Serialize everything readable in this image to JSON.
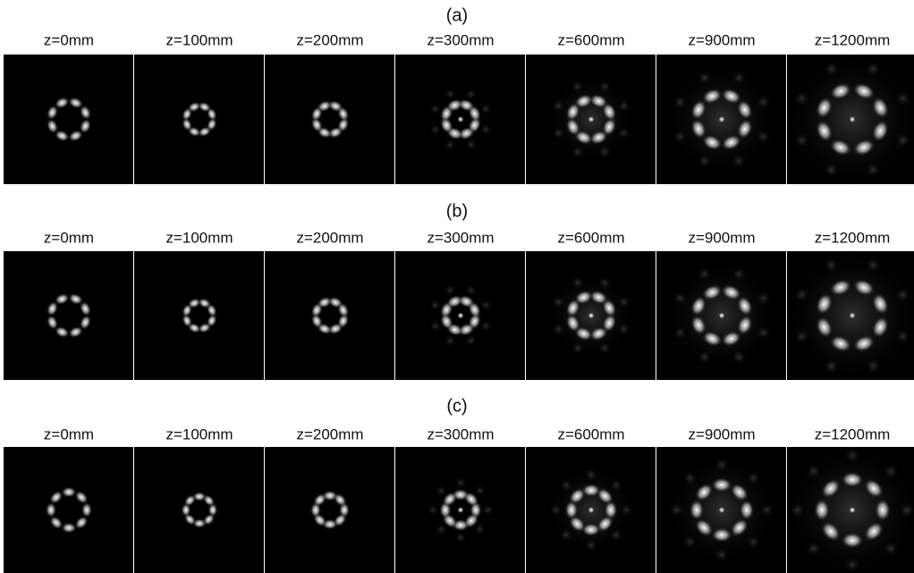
{
  "rows": [
    {
      "label": "(a)",
      "panels": [
        "z=0mm",
        "z=100mm",
        "z=200mm",
        "z=300mm",
        "z=600mm",
        "z=900mm",
        "z=1200mm"
      ]
    },
    {
      "label": "(b)",
      "panels": [
        "z=0mm",
        "z=100mm",
        "z=200mm",
        "z=300mm",
        "z=600mm",
        "z=900mm",
        "z=1200mm"
      ]
    },
    {
      "label": "(c)",
      "panels": [
        "z=0mm",
        "z=100mm",
        "z=200mm",
        "z=300mm",
        "z=600mm",
        "z=900mm",
        "z=1200mm"
      ]
    }
  ]
}
